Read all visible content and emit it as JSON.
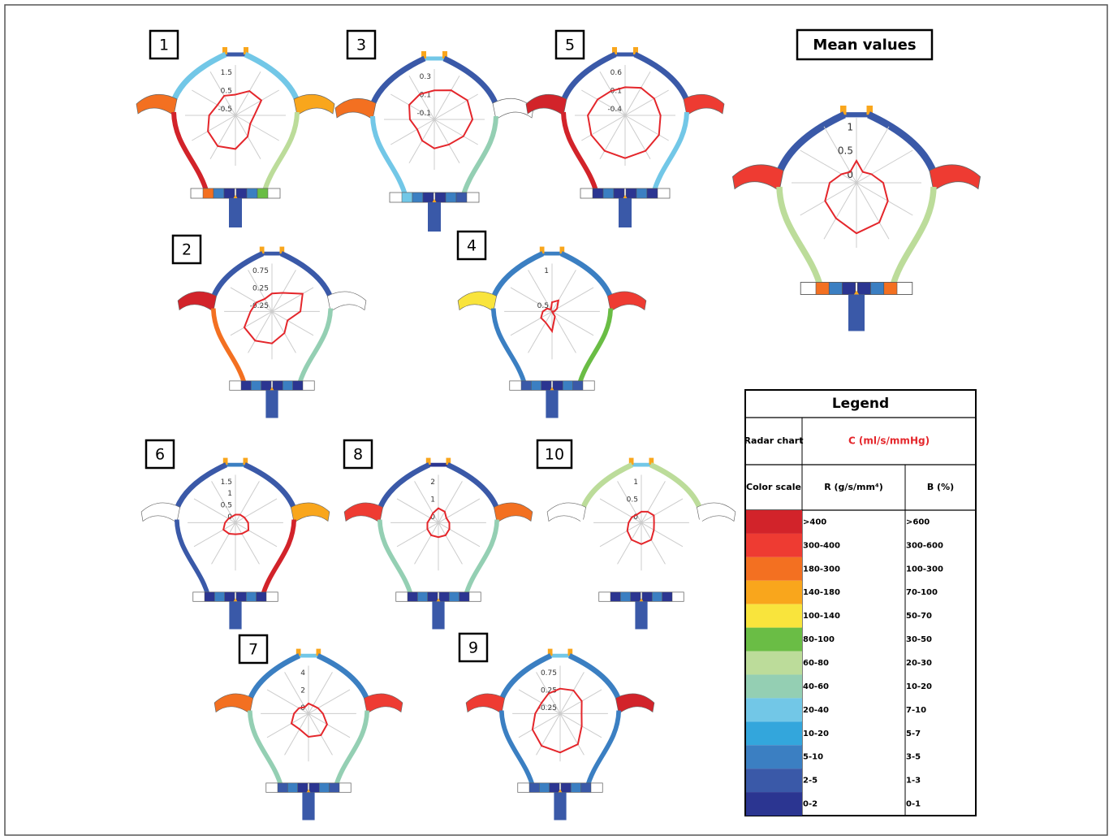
{
  "panels": [
    {
      "label": "1",
      "radar": {
        "ticks": [
          1.5,
          0.5,
          -0.5
        ],
        "values": [
          0.3,
          0.7,
          0.8,
          0.2,
          0.1,
          0.5,
          1.0,
          1.1,
          0.9,
          0.6,
          0.3,
          0.4
        ]
      }
    },
    {
      "label": "2",
      "radar": {
        "ticks": [
          0.75,
          0.25,
          -0.25
        ],
        "values": [
          0.1,
          0.2,
          0.6,
          0.4,
          0.1,
          0.3,
          0.5,
          0.55,
          0.5,
          0.2,
          0.1,
          0.0
        ]
      }
    },
    {
      "label": "3",
      "radar": {
        "ticks": [
          0.3,
          0.1,
          -0.1
        ],
        "values": [
          0.15,
          0.2,
          0.25,
          0.25,
          0.2,
          0.15,
          0.15,
          0.1,
          0.05,
          0.1,
          0.15,
          0.15
        ]
      }
    },
    {
      "label": "4",
      "radar": {
        "ticks": [
          1,
          0.5
        ],
        "values": [
          0.55,
          0.6,
          0.5,
          0.45,
          0.4,
          0.5,
          0.7,
          0.6,
          0.6,
          0.55,
          0.5,
          0.45
        ]
      }
    },
    {
      "label": "5",
      "radar": {
        "ticks": [
          0.6,
          0.1,
          -0.4
        ],
        "values": [
          0.2,
          0.3,
          0.35,
          0.4,
          0.5,
          0.55,
          0.6,
          0.55,
          0.5,
          0.45,
          0.3,
          0.2
        ]
      }
    },
    {
      "label": "6",
      "radar": {
        "ticks": [
          1.5,
          1,
          0.5,
          0
        ],
        "values": [
          0.1,
          0.15,
          0.2,
          0.3,
          0.4,
          0.3,
          0.25,
          0.3,
          0.35,
          0.2,
          0.1,
          0.05
        ]
      }
    },
    {
      "label": "7",
      "radar": {
        "ticks": [
          4,
          2,
          0
        ],
        "values": [
          0.5,
          0.4,
          0.6,
          1.0,
          1.8,
          2.2,
          2.0,
          1.4,
          1.6,
          1.0,
          0.6,
          0.2
        ]
      }
    },
    {
      "label": "8",
      "radar": {
        "ticks": [
          2,
          1,
          0
        ],
        "values": [
          0.5,
          0.4,
          0.2,
          0.3,
          0.4,
          0.5,
          0.5,
          0.5,
          0.4,
          0.3,
          0.2,
          0.3
        ]
      }
    },
    {
      "label": "9",
      "radar": {
        "ticks": [
          0.75,
          0.25,
          -0.25
        ],
        "values": [
          0.3,
          0.35,
          0.3,
          0.2,
          0.3,
          0.6,
          0.7,
          0.65,
          0.5,
          0.3,
          0.2,
          0.25
        ]
      }
    },
    {
      "label": "10",
      "radar": {
        "ticks": [
          1,
          0.5,
          0
        ],
        "values": [
          0.15,
          0.2,
          0.25,
          0.2,
          0.25,
          0.4,
          0.45,
          0.4,
          0.3,
          0.2,
          0.15,
          0.1
        ]
      }
    }
  ],
  "mean": {
    "label": "Mean values",
    "radar": {
      "ticks": [
        1,
        0.5,
        0
      ],
      "values": [
        0.3,
        0.1,
        0.2,
        0.4,
        0.6,
        0.8,
        0.9,
        0.7,
        0.6,
        0.4,
        0.2,
        0.1
      ]
    }
  },
  "legend": {
    "title": "Legend",
    "radar_label": "Radar chart",
    "radar_value": "C (ml/s/mmHg)",
    "scale_label": "Color scale",
    "col_r": "R (g/s/mm⁴)",
    "col_b": "B (%)",
    "rows": [
      {
        "color": "#d2232a",
        "r": ">400",
        "b": ">600"
      },
      {
        "color": "#ee3b32",
        "r": "300-400",
        "b": "300-600"
      },
      {
        "color": "#f37021",
        "r": "180-300",
        "b": "100-300"
      },
      {
        "color": "#f9a61c",
        "r": "140-180",
        "b": "70-100"
      },
      {
        "color": "#f9e43c",
        "r": "100-140",
        "b": "50-70"
      },
      {
        "color": "#6abd45",
        "r": "80-100",
        "b": "30-50"
      },
      {
        "color": "#bcdc9a",
        "r": "60-80",
        "b": "20-30"
      },
      {
        "color": "#94cfb3",
        "r": "40-60",
        "b": "10-20"
      },
      {
        "color": "#72c7e7",
        "r": "20-40",
        "b": "7-10"
      },
      {
        "color": "#33a6dc",
        "r": "10-20",
        "b": "5-7"
      },
      {
        "color": "#3b7fc2",
        "r": "5-10",
        "b": "3-5"
      },
      {
        "color": "#3a59a8",
        "r": "2-5",
        "b": "1-3"
      },
      {
        "color": "#2b3591",
        "r": "0-2",
        "b": "0-1"
      }
    ]
  }
}
